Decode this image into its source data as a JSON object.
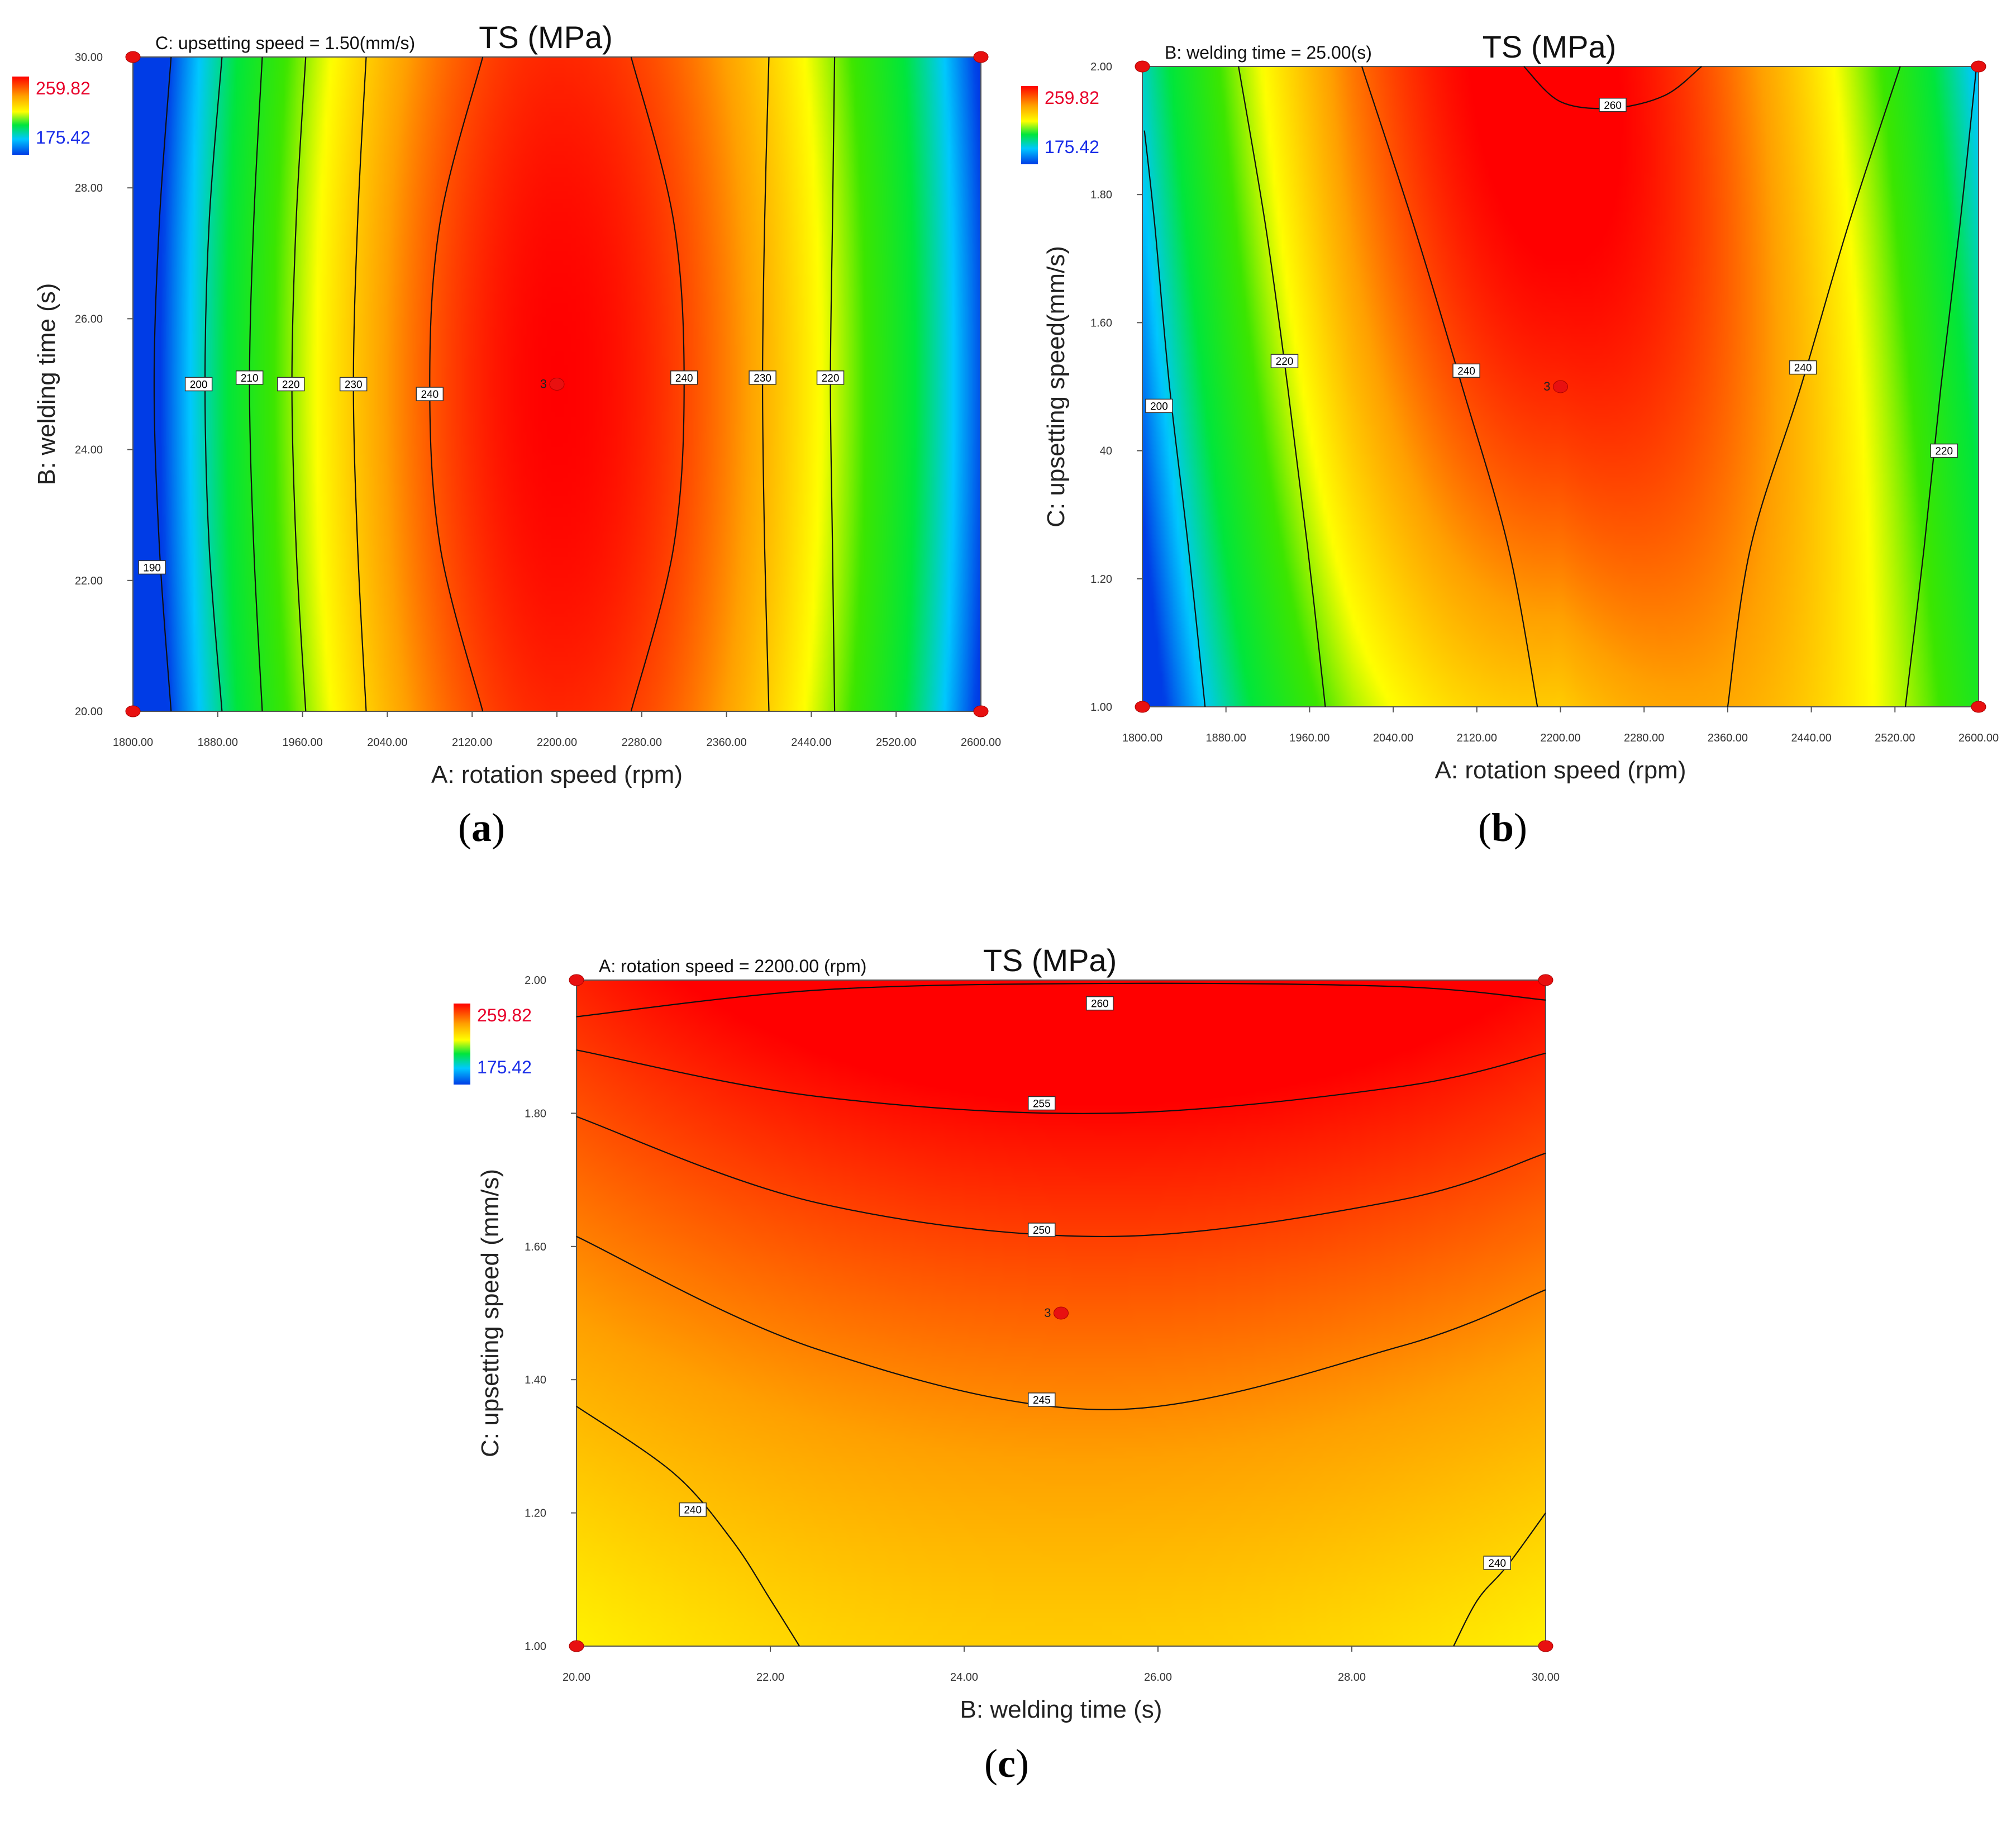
{
  "chart_data": [
    {
      "id": "a",
      "type": "heatmap",
      "subtype": "contour",
      "panel_label": "a",
      "title": "TS (MPa)",
      "fixed_factor": "C: upsetting speed = 1.50(mm/s)",
      "xlabel": "A: rotation speed (rpm)",
      "ylabel": "B: welding time (s)",
      "xlim": [
        1800,
        2600
      ],
      "ylim": [
        20,
        30
      ],
      "xticks": [
        "1800.00",
        "1880.00",
        "1960.00",
        "2040.00",
        "2120.00",
        "2200.00",
        "2280.00",
        "2360.00",
        "2440.00",
        "2520.00",
        "2600.00"
      ],
      "yticks": [
        "20.00",
        "22.00",
        "24.00",
        "26.00",
        "28.00",
        "30.00"
      ],
      "colorbar": {
        "max": "259.82",
        "min": "175.42"
      },
      "center_point": {
        "x": 2200,
        "y": 25,
        "label": "3"
      },
      "corner_points": [
        [
          1800,
          20
        ],
        [
          1800,
          30
        ],
        [
          2600,
          20
        ],
        [
          2600,
          30
        ]
      ],
      "contours": [
        {
          "level": "190",
          "points": [
            [
              1836,
              20
            ],
            [
              1825,
              22.5
            ],
            [
              1820,
              25
            ],
            [
              1825,
              27.5
            ],
            [
              1836,
              30
            ]
          ],
          "label_at": [
            1818,
            22.2
          ]
        },
        {
          "level": "200",
          "points": [
            [
              1884,
              20
            ],
            [
              1872,
              22.5
            ],
            [
              1868,
              25
            ],
            [
              1872,
              27.5
            ],
            [
              1884,
              30
            ]
          ],
          "label_at": [
            1862,
            25
          ]
        },
        {
          "level": "210",
          "points": [
            [
              1922,
              20
            ],
            [
              1914,
              22.5
            ],
            [
              1910,
              25
            ],
            [
              1914,
              27.5
            ],
            [
              1922,
              30
            ]
          ],
          "label_at": [
            1910,
            25.1
          ]
        },
        {
          "level": "220",
          "points": [
            [
              1963,
              20
            ],
            [
              1954,
              22.5
            ],
            [
              1950,
              25
            ],
            [
              1954,
              27.5
            ],
            [
              1963,
              30
            ]
          ],
          "label_at": [
            1949,
            25
          ]
        },
        {
          "level": "230",
          "points": [
            [
              2020,
              20
            ],
            [
              2012,
              22.5
            ],
            [
              2008,
              25
            ],
            [
              2012,
              27.5
            ],
            [
              2020,
              30
            ]
          ],
          "label_at": [
            2008,
            25
          ]
        },
        {
          "level": "240",
          "points": [
            [
              2130,
              20
            ],
            [
              2090,
              22.5
            ],
            [
              2080,
              25
            ],
            [
              2090,
              27.5
            ],
            [
              2130,
              30
            ]
          ],
          "label_at": [
            2080,
            24.85
          ]
        },
        {
          "level": "240",
          "points": [
            [
              2270,
              20
            ],
            [
              2310,
              22.5
            ],
            [
              2320,
              25
            ],
            [
              2310,
              27.5
            ],
            [
              2270,
              30
            ]
          ],
          "label_at": [
            2320,
            25.1
          ]
        },
        {
          "level": "230",
          "points": [
            [
              2400,
              20
            ],
            [
              2396,
              22.5
            ],
            [
              2394,
              25
            ],
            [
              2396,
              27.5
            ],
            [
              2400,
              30
            ]
          ],
          "label_at": [
            2394,
            25.1
          ]
        },
        {
          "level": "220",
          "points": [
            [
              2462,
              20
            ],
            [
              2460,
              22.5
            ],
            [
              2458,
              25
            ],
            [
              2460,
              27.5
            ],
            [
              2462,
              30
            ]
          ],
          "label_at": [
            2458,
            25.1
          ]
        }
      ]
    },
    {
      "id": "b",
      "type": "heatmap",
      "subtype": "contour",
      "panel_label": "b",
      "title": "TS (MPa)",
      "fixed_factor": "B: welding time = 25.00(s)",
      "xlabel": "A: rotation speed (rpm)",
      "ylabel": "C: upsetting speed(mm/s)",
      "xlim": [
        1800,
        2600
      ],
      "ylim": [
        1.0,
        2.0
      ],
      "xticks": [
        "1800.00",
        "1880.00",
        "1960.00",
        "2040.00",
        "2120.00",
        "2200.00",
        "2280.00",
        "2360.00",
        "2440.00",
        "2520.00",
        "2600.00"
      ],
      "yticks": [
        "1.00",
        "1.20",
        "1.40",
        "1.60",
        "1.80",
        "2.00"
      ],
      "ytick_labels": [
        "1.00",
        "1.20",
        "40",
        "1.60",
        "1.80",
        "2.00"
      ],
      "colorbar": {
        "max": "259.82",
        "min": "175.42"
      },
      "center_point": {
        "x": 2200,
        "y": 1.5,
        "label": "3"
      },
      "corner_points": [
        [
          1800,
          1.0
        ],
        [
          1800,
          2.0
        ],
        [
          2600,
          1.0
        ],
        [
          2600,
          2.0
        ]
      ],
      "contours": [
        {
          "level": "200",
          "points": [
            [
              1860,
              1.0
            ],
            [
              1844,
              1.25
            ],
            [
              1826,
              1.5
            ],
            [
              1812,
              1.75
            ],
            [
              1802,
              1.9
            ]
          ],
          "label_at": [
            1816,
            1.47
          ]
        },
        {
          "level": "220",
          "points": [
            [
              1975,
              1.0
            ],
            [
              1958,
              1.25
            ],
            [
              1939,
              1.5
            ],
            [
              1918,
              1.75
            ],
            [
              1892,
              2.0
            ]
          ],
          "label_at": [
            1936,
            1.54
          ]
        },
        {
          "level": "240",
          "points": [
            [
              2178,
              1.0
            ],
            [
              2150,
              1.25
            ],
            [
              2106,
              1.5
            ],
            [
              2060,
              1.75
            ],
            [
              2010,
              2.0
            ]
          ],
          "label_at": [
            2110,
            1.525
          ]
        },
        {
          "level": "240",
          "points": [
            [
              2360,
              1.0
            ],
            [
              2382,
              1.25
            ],
            [
              2430,
              1.5
            ],
            [
              2475,
              1.75
            ],
            [
              2525,
              2.0
            ]
          ],
          "label_at": [
            2432,
            1.53
          ]
        },
        {
          "level": "220",
          "points": [
            [
              2530,
              1.0
            ],
            [
              2548,
              1.25
            ],
            [
              2564,
              1.5
            ],
            [
              2582,
              1.75
            ],
            [
              2598,
              2.0
            ]
          ],
          "label_at": [
            2567,
            1.4
          ]
        },
        {
          "level": "260",
          "points": [
            [
              2165,
              2.0
            ],
            [
              2200,
              1.945
            ],
            [
              2250,
              1.935
            ],
            [
              2300,
              1.955
            ],
            [
              2335,
              2.0
            ]
          ],
          "label_at": [
            2250,
            1.94
          ]
        }
      ]
    },
    {
      "id": "c",
      "type": "heatmap",
      "subtype": "contour",
      "panel_label": "c",
      "title": "TS (MPa)",
      "fixed_factor": "A: rotation speed = 2200.00 (rpm)",
      "xlabel": "B: welding time (s)",
      "ylabel": "C: upsetting speed (mm/s)",
      "xlim": [
        20,
        30
      ],
      "ylim": [
        1.0,
        2.0
      ],
      "xticks": [
        "20.00",
        "22.00",
        "24.00",
        "26.00",
        "28.00",
        "30.00"
      ],
      "yticks": [
        "1.00",
        "1.20",
        "1.40",
        "1.60",
        "1.80",
        "2.00"
      ],
      "colorbar": {
        "max": "259.82",
        "min": "175.42"
      },
      "center_point": {
        "x": 25,
        "y": 1.5,
        "label": "3"
      },
      "corner_points": [
        [
          20,
          1.0
        ],
        [
          20,
          2.0
        ],
        [
          30,
          1.0
        ],
        [
          30,
          2.0
        ]
      ],
      "contours": [
        {
          "level": "260",
          "points": [
            [
              20,
              1.945
            ],
            [
              22.5,
              1.985
            ],
            [
              25.5,
              1.995
            ],
            [
              28.5,
              1.99
            ],
            [
              30,
              1.97
            ]
          ],
          "label_at": [
            25.4,
            1.965
          ]
        },
        {
          "level": "255",
          "points": [
            [
              20,
              1.895
            ],
            [
              22.5,
              1.825
            ],
            [
              25.5,
              1.8
            ],
            [
              28.5,
              1.84
            ],
            [
              30,
              1.89
            ]
          ],
          "label_at": [
            24.8,
            1.815
          ]
        },
        {
          "level": "250",
          "points": [
            [
              20,
              1.795
            ],
            [
              22.5,
              1.665
            ],
            [
              25.5,
              1.615
            ],
            [
              28.5,
              1.67
            ],
            [
              30,
              1.74
            ]
          ],
          "label_at": [
            24.8,
            1.625
          ]
        },
        {
          "level": "245",
          "points": [
            [
              20,
              1.615
            ],
            [
              22.5,
              1.445
            ],
            [
              25.5,
              1.355
            ],
            [
              28.5,
              1.45
            ],
            [
              30,
              1.535
            ]
          ],
          "label_at": [
            24.8,
            1.37
          ]
        },
        {
          "level": "240",
          "points": [
            [
              20,
              1.36
            ],
            [
              21,
              1.26
            ],
            [
              21.6,
              1.16
            ],
            [
              22,
              1.07
            ],
            [
              22.3,
              1.0
            ]
          ],
          "label_at": [
            21.2,
            1.205
          ]
        },
        {
          "level": "240",
          "points": [
            [
              29.05,
              1.0
            ],
            [
              29.3,
              1.07
            ],
            [
              29.6,
              1.12
            ],
            [
              30,
              1.2
            ]
          ],
          "label_at": [
            29.5,
            1.125
          ]
        }
      ]
    }
  ]
}
